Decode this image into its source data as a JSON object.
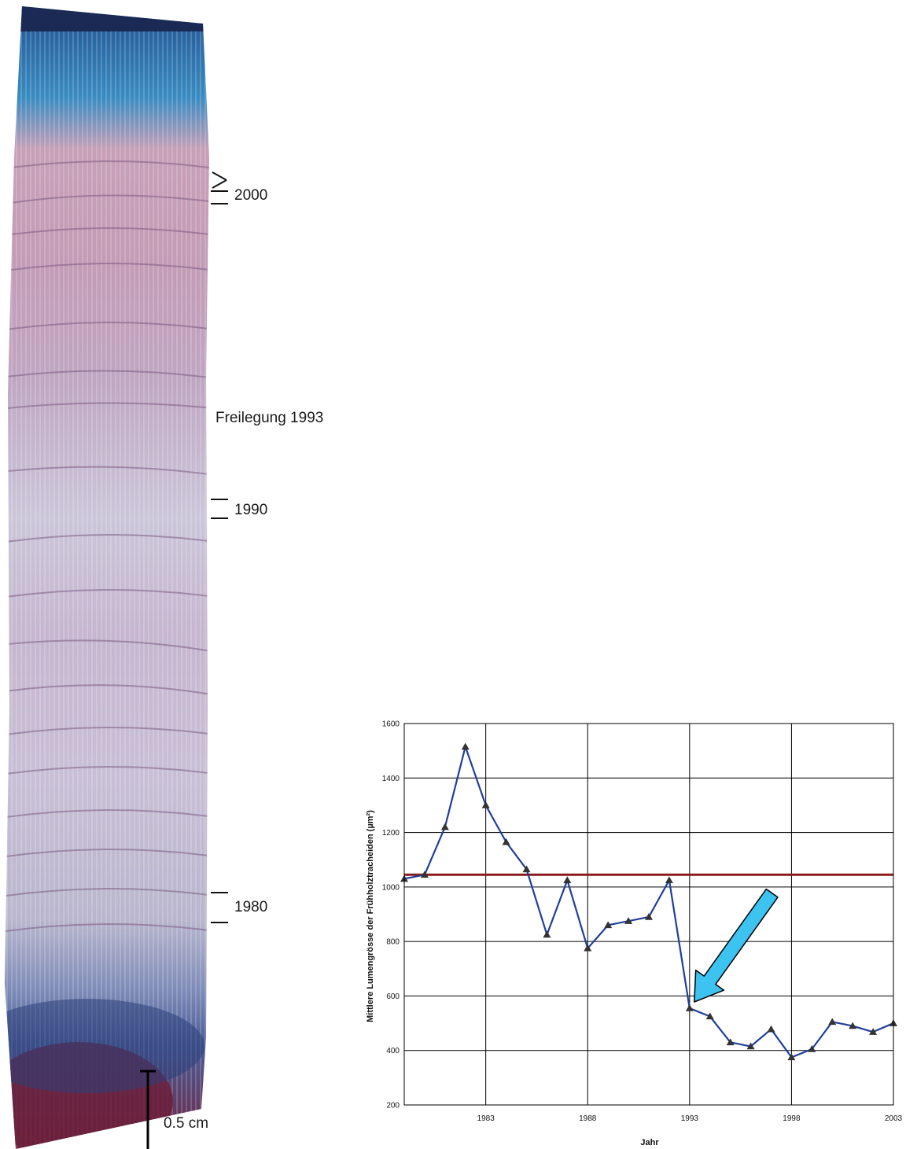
{
  "micrograph": {
    "labels": {
      "y2000": "2000",
      "freilegung": "Freilegung 1993",
      "y1990": "1990",
      "y1980": "1980"
    },
    "scale_label": "0.5 cm",
    "colors": {
      "bark": "#24427a",
      "stain_blue": "#2f7fb8",
      "wood_pink": "#c9a3bd",
      "wood_lilac": "#b7b3cc",
      "pith": "#7a2038"
    }
  },
  "chart_data": {
    "type": "line",
    "title": "",
    "xlabel": "Jahr",
    "ylabel": "Mittlere Lumengrösse der Frühholztracheiden (µm²)",
    "xlim": [
      1979,
      2003
    ],
    "ylim": [
      200,
      1600
    ],
    "xticks": [
      1983,
      1988,
      1993,
      1998,
      2003
    ],
    "xtick_labels": [
      "1983",
      "1988",
      "1993",
      "1998",
      "2003"
    ],
    "yticks": [
      200,
      400,
      600,
      800,
      1000,
      1200,
      1400,
      1600
    ],
    "ytick_labels": [
      "200",
      "400",
      "600",
      "800",
      "1000",
      "1200",
      "1400",
      "1600"
    ],
    "grid": true,
    "series": [
      {
        "color": "#1f3f9a",
        "marker": "triangle",
        "marker_color": "#333333",
        "x": [
          1979,
          1980,
          1981,
          1982,
          1983,
          1984,
          1985,
          1986,
          1987,
          1988,
          1989,
          1990,
          1991,
          1992,
          1993,
          1994,
          1995,
          1996,
          1997,
          1998,
          1999,
          2000,
          2001,
          2002,
          2003
        ],
        "y": [
          1030,
          1045,
          1220,
          1515,
          1300,
          1165,
          1065,
          825,
          1025,
          775,
          860,
          875,
          890,
          1025,
          555,
          525,
          430,
          415,
          478,
          375,
          405,
          505,
          490,
          468,
          500
        ]
      }
    ],
    "reference_line": {
      "y": 1045,
      "color": "#8b1a1a"
    },
    "arrow": {
      "to_x": 1993,
      "to_y": 555,
      "color": "#3cc3ef"
    }
  }
}
